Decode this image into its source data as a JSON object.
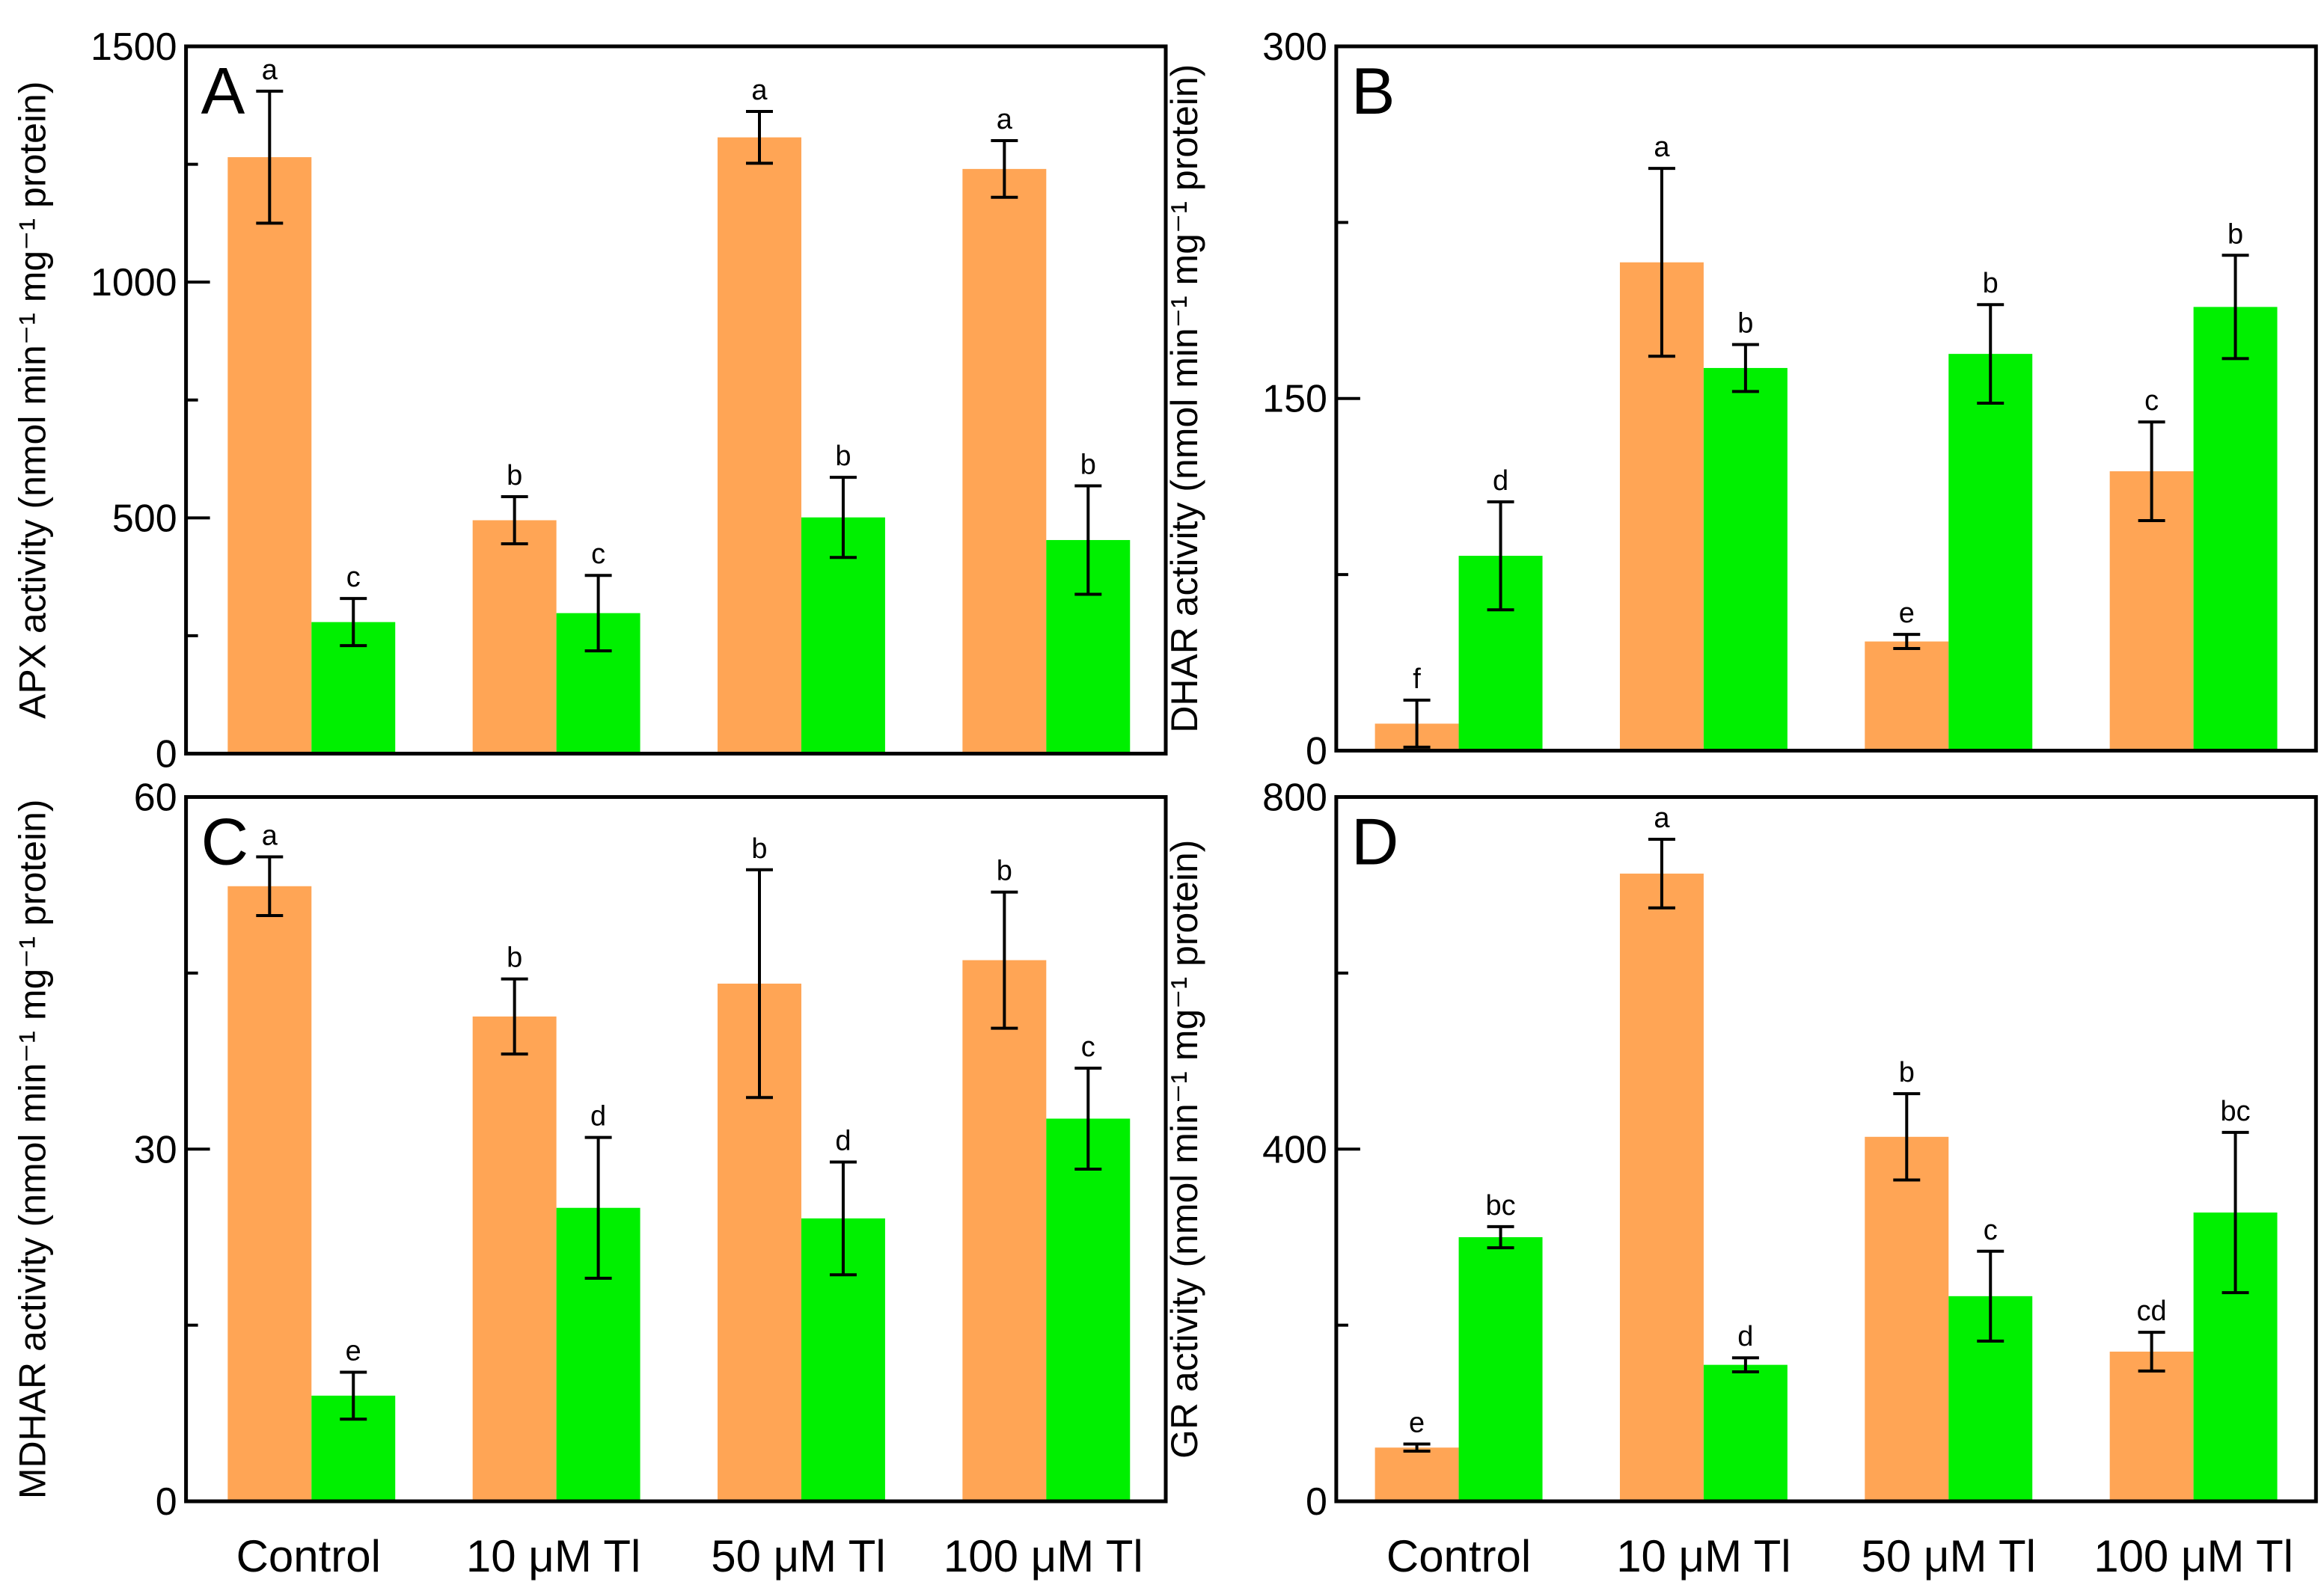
{
  "colors": {
    "orange": "#FFA555",
    "green": "#00F000"
  },
  "chart_data": [
    {
      "type": "bar",
      "panel": "A",
      "ylabel": "APX activity (nmol min⁻¹ mg⁻¹ protein)",
      "ylim": [
        0,
        1500
      ],
      "yticks": [
        0,
        500,
        1000,
        1500
      ],
      "categories": [
        "Control",
        "10 μM Tl",
        "50 μM Tl",
        "100 μM Tl"
      ],
      "series": [
        {
          "name": "orange",
          "values": [
            1265,
            495,
            1307,
            1240
          ],
          "errors": [
            140,
            50,
            55,
            60
          ],
          "letters": [
            "a",
            "b",
            "a",
            "a"
          ]
        },
        {
          "name": "green",
          "values": [
            279,
            298,
            501,
            453
          ],
          "errors": [
            50,
            80,
            85,
            115
          ],
          "letters": [
            "c",
            "c",
            "b",
            "b"
          ]
        }
      ]
    },
    {
      "type": "bar",
      "panel": "B",
      "ylabel": "DHAR activity (nmol min⁻¹ mg⁻¹ protein)",
      "ylim": [
        0,
        300
      ],
      "yticks": [
        0,
        150,
        300
      ],
      "categories": [
        "Control",
        "10 μM Tl",
        "50 μM Tl",
        "100 μM Tl"
      ],
      "series": [
        {
          "name": "orange",
          "values": [
            11.5,
            208,
            46.5,
            119
          ],
          "errors": [
            10,
            40,
            3,
            21
          ],
          "letters": [
            "f",
            "a",
            "e",
            "c"
          ]
        },
        {
          "name": "green",
          "values": [
            83,
            163,
            169,
            189
          ],
          "errors": [
            23,
            10,
            21,
            22
          ],
          "letters": [
            "d",
            "b",
            "b",
            "b"
          ]
        }
      ]
    },
    {
      "type": "bar",
      "panel": "C",
      "ylabel": "MDHAR activity (nmol min⁻¹ mg⁻¹ protein)",
      "ylim": [
        0,
        60
      ],
      "yticks": [
        0,
        30,
        60
      ],
      "categories": [
        "Control",
        "10 μM Tl",
        "50 μM Tl",
        "100 μM Tl"
      ],
      "series": [
        {
          "name": "orange",
          "values": [
            52.4,
            41.3,
            44.1,
            46.1
          ],
          "errors": [
            2.5,
            3.2,
            9.7,
            5.8
          ],
          "letters": [
            "a",
            "b",
            "b",
            "b"
          ]
        },
        {
          "name": "green",
          "values": [
            9.0,
            25,
            24.1,
            32.6
          ],
          "errors": [
            2,
            6,
            4.8,
            4.3
          ],
          "letters": [
            "e",
            "d",
            "d",
            "c"
          ]
        }
      ]
    },
    {
      "type": "bar",
      "panel": "D",
      "ylabel": "GR activity (nmol min⁻¹ mg⁻¹ protein)",
      "ylim": [
        0,
        800
      ],
      "yticks": [
        0,
        400,
        800
      ],
      "categories": [
        "Control",
        "10 μM Tl",
        "50 μM Tl",
        "100 μM Tl"
      ],
      "series": [
        {
          "name": "orange",
          "values": [
            61,
            713,
            414,
            170
          ],
          "errors": [
            4,
            39,
            49,
            22
          ],
          "letters": [
            "e",
            "a",
            "b",
            "cd"
          ]
        },
        {
          "name": "green",
          "values": [
            300,
            155,
            233,
            328
          ],
          "errors": [
            12,
            8,
            51,
            91
          ],
          "letters": [
            "bc",
            "d",
            "c",
            "bc"
          ]
        }
      ]
    }
  ]
}
